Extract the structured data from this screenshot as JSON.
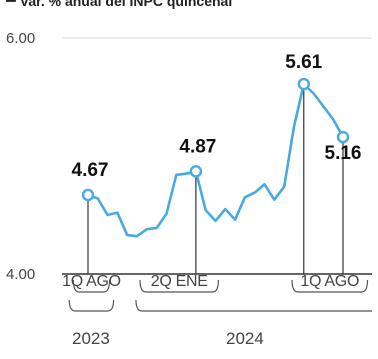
{
  "title": "▀ Var. % anual del INPC quincenal",
  "chart_data": {
    "type": "line",
    "title": "▀ Var. % anual del INPC quincenal",
    "xlabel": "",
    "ylabel": "",
    "ylim": [
      4.0,
      6.0
    ],
    "yticks": [
      "6.00",
      "4.00"
    ],
    "grid": "horizontal",
    "legend": "none",
    "line_color": "#4aa9e0",
    "marker_fill": "#ffffff",
    "series": [
      {
        "values": [
          4.67,
          4.64,
          4.5,
          4.52,
          4.33,
          4.32,
          4.38,
          4.39,
          4.51,
          4.84,
          4.85,
          4.87,
          4.54,
          4.45,
          4.55,
          4.46,
          4.65,
          4.69,
          4.76,
          4.63,
          4.74,
          5.25,
          5.61,
          5.53,
          5.42,
          5.31,
          5.16
        ]
      }
    ],
    "highlights": [
      {
        "index": 0,
        "value": 4.67,
        "label": "4.67"
      },
      {
        "index": 11,
        "value": 4.87,
        "label": "4.87"
      },
      {
        "index": 22,
        "value": 5.61,
        "label": "5.61"
      },
      {
        "index": 26,
        "value": 5.16,
        "label": "5.16"
      }
    ],
    "period_labels": [
      {
        "text": "1Q AGO",
        "start": -1.5,
        "end": 2.2
      },
      {
        "text": "2Q ENE",
        "start": 5.3,
        "end": 13.3
      },
      {
        "text": "1Q AGO",
        "start": 20.8,
        "end": 28.5
      }
    ],
    "year_labels": [
      {
        "text": "2023",
        "center": 0.3
      },
      {
        "text": "2024",
        "center": 16.0
      }
    ]
  }
}
